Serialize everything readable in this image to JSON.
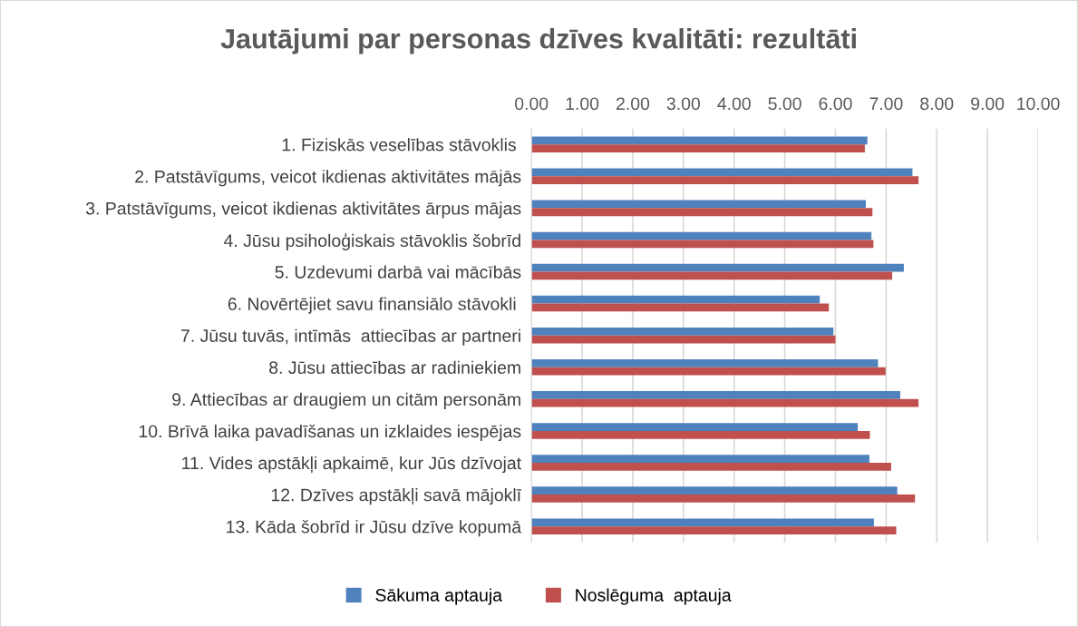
{
  "chart_data": {
    "type": "bar",
    "orientation": "horizontal",
    "title": "Jautājumi par personas dzīves kvalitāti: rezultāti",
    "categories": [
      "1. Fiziskās veselības stāvoklis ",
      "2. Patstāvīgums, veicot ikdienas aktivitātes mājās",
      "3. Patstāvīgums, veicot ikdienas aktivitātes ārpus mājas",
      "4. Jūsu psiholoģiskais stāvoklis šobrīd",
      "5. Uzdevumi darbā vai mācībās",
      "6. Novērtējiet savu finansiālo stāvokli ",
      "7. Jūsu tuvās, intīmās  attiecības ar partneri",
      "8. Jūsu attiecības ar radiniekiem",
      "9. Attiecības ar draugiem un citām personām",
      "10. Brīvā laika pavadīšanas un izklaides iespējas",
      "11. Vides apstākļi apkaimē, kur Jūs dzīvojat",
      "12. Dzīves apstākļi savā mājoklī",
      "13. Kāda šobrīd ir Jūsu dzīve kopumā"
    ],
    "series": [
      {
        "name": "Sākuma aptauja",
        "color": "#4f81bd",
        "values": [
          6.63,
          7.52,
          6.6,
          6.71,
          7.35,
          5.69,
          5.96,
          6.84,
          7.28,
          6.44,
          6.67,
          7.22,
          6.76
        ]
      },
      {
        "name": "Noslēguma  aptauja",
        "color": "#c0504d",
        "values": [
          6.58,
          7.64,
          6.73,
          6.75,
          7.12,
          5.87,
          6.0,
          6.99,
          7.64,
          6.68,
          7.1,
          7.57,
          7.2
        ]
      }
    ],
    "xlim": [
      0,
      10
    ],
    "xticks": [
      {
        "value": 0,
        "label": "0.00"
      },
      {
        "value": 1,
        "label": "1.00"
      },
      {
        "value": 2,
        "label": "2.00"
      },
      {
        "value": 3,
        "label": "3.00"
      },
      {
        "value": 4,
        "label": "4.00"
      },
      {
        "value": 5,
        "label": "5.00"
      },
      {
        "value": 6,
        "label": "6.00"
      },
      {
        "value": 7,
        "label": "7.00"
      },
      {
        "value": 8,
        "label": "8.00"
      },
      {
        "value": 9,
        "label": "9.00"
      },
      {
        "value": 10,
        "label": "10.00"
      }
    ],
    "grid": "x",
    "legend": "bottom"
  }
}
